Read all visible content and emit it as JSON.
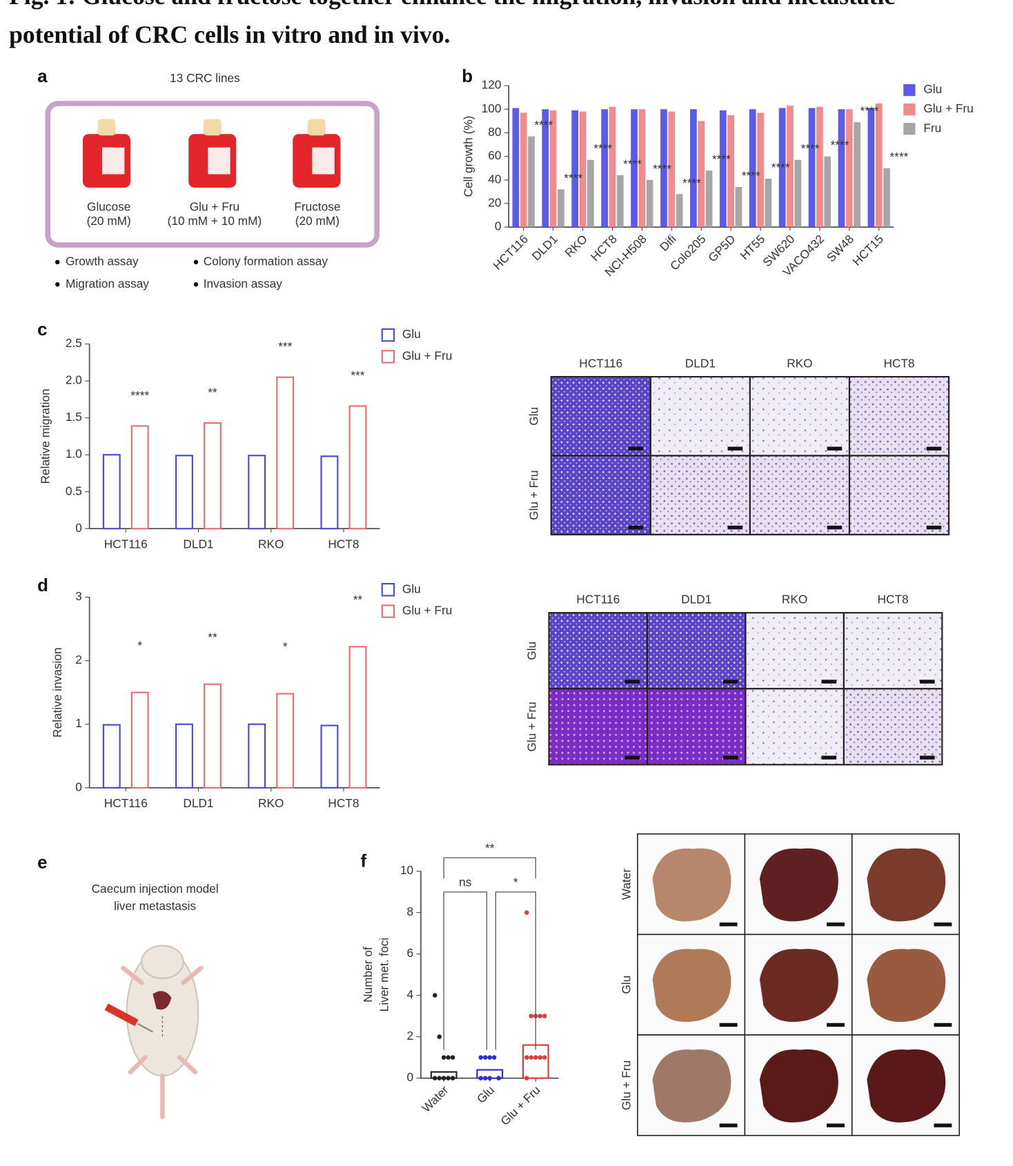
{
  "title_lines": [
    "Fig. 1: Glucose and fructose together enhance the migration, invasion and metastatic",
    "potential of CRC cells in vitro and in vivo."
  ],
  "panel_labels": [
    "a",
    "b",
    "c",
    "d",
    "e",
    "f"
  ],
  "panel_a": {
    "header": "13 CRC lines",
    "conditions": [
      {
        "name": "Glucose",
        "dose": "(20 mM)"
      },
      {
        "name": "Glu + Fru",
        "dose": "(10 mM + 10 mM)"
      },
      {
        "name": "Fructose",
        "dose": "(20 mM)"
      }
    ],
    "assays": [
      "Growth assay",
      "Colony formation assay",
      "Migration assay",
      "Invasion assay"
    ]
  },
  "panel_e": {
    "lines": [
      "Caecum injection model",
      "liver metastasis"
    ]
  },
  "migration_images": {
    "columns": [
      "HCT116",
      "DLD1",
      "RKO",
      "HCT8"
    ],
    "rows": [
      "Glu",
      "Glu + Fru"
    ]
  },
  "invasion_images": {
    "columns": [
      "HCT116",
      "DLD1",
      "RKO",
      "HCT8"
    ],
    "rows": [
      "Glu",
      "Glu + Fru"
    ]
  },
  "liver_images": {
    "rows": [
      "Water",
      "Glu",
      "Glu + Fru"
    ]
  },
  "chart_data": [
    {
      "type": "bar",
      "bar_fill": "solid",
      "ylabel": "Cell growth (%)",
      "categories": [
        "HCT116",
        "DLD1",
        "RKO",
        "HCT8",
        "NCI-H508",
        "Difi",
        "Colo205",
        "GP5D",
        "HT55",
        "SW620",
        "VACO432",
        "SW48",
        "HCT15"
      ],
      "series": [
        {
          "name": "Glu",
          "color": "#5b5be8",
          "values": [
            101,
            100,
            99,
            100,
            100,
            100,
            100,
            99,
            100,
            101,
            101,
            100,
            101
          ]
        },
        {
          "name": "Glu + Fru",
          "color": "#f08c8c",
          "values": [
            97,
            99,
            98,
            102,
            100,
            98,
            90,
            95,
            97,
            103,
            102,
            100,
            105
          ]
        },
        {
          "name": "Fru",
          "color": "#a6a6a6",
          "values": [
            77,
            32,
            57,
            44,
            40,
            28,
            48,
            34,
            41,
            57,
            60,
            89,
            50
          ]
        }
      ],
      "significance": [
        "****",
        "****",
        "****",
        "****",
        "****",
        "****",
        "****",
        "****",
        "****",
        "****",
        "****",
        "****",
        "****"
      ],
      "ylim": [
        0,
        120
      ],
      "yticks": [
        0,
        20,
        40,
        60,
        80,
        100,
        120
      ]
    },
    {
      "type": "bar",
      "bar_fill": "outline",
      "ylabel": "Relative migration",
      "categories": [
        "HCT116",
        "DLD1",
        "RKO",
        "HCT8"
      ],
      "series": [
        {
          "name": "Glu",
          "color": "#4a4ad8",
          "values": [
            1.0,
            0.99,
            0.99,
            0.98
          ]
        },
        {
          "name": "Glu + Fru",
          "color": "#e86f6f",
          "values": [
            1.39,
            1.43,
            2.05,
            1.66
          ]
        }
      ],
      "significance": [
        "****",
        "**",
        "***",
        "***"
      ],
      "ylim": [
        0,
        2.5
      ],
      "yticks": [
        0,
        0.5,
        {
          "value": 1,
          "label": "1.0"
        },
        1.5,
        {
          "value": 2,
          "label": "2.0"
        },
        2.5
      ]
    },
    {
      "type": "bar",
      "bar_fill": "outline",
      "ylabel": "Relative invasion",
      "categories": [
        "HCT116",
        "DLD1",
        "RKO",
        "HCT8"
      ],
      "series": [
        {
          "name": "Glu",
          "color": "#4a4ad8",
          "values": [
            0.99,
            1.0,
            1.0,
            0.98
          ]
        },
        {
          "name": "Glu + Fru",
          "color": "#e86f6f",
          "values": [
            1.5,
            1.63,
            1.48,
            2.22
          ]
        }
      ],
      "significance": [
        "*",
        "**",
        "*",
        "**"
      ],
      "ylim": [
        0,
        3
      ],
      "yticks": [
        0,
        1,
        2,
        3
      ]
    },
    {
      "type": "strip",
      "ylabel_lines": [
        "Number of",
        "Liver met. foci"
      ],
      "categories": [
        "Water",
        "Glu",
        "Glu + Fru"
      ],
      "values": [
        0.3,
        0.4,
        1.6
      ],
      "colors": [
        "#222222",
        "#2b2bd8",
        "#e03b3b"
      ],
      "points": [
        [
          4,
          2,
          1,
          1,
          1,
          0,
          0,
          0,
          0,
          0
        ],
        [
          1,
          1,
          1,
          1,
          0,
          0,
          0,
          0
        ],
        [
          8,
          3,
          3,
          3,
          3,
          1,
          1,
          1,
          1,
          1,
          0
        ]
      ],
      "brackets": [
        "ns",
        "*",
        "**"
      ],
      "ylim": [
        0,
        10
      ],
      "yticks": [
        0,
        2,
        4,
        6,
        8,
        10
      ]
    }
  ]
}
